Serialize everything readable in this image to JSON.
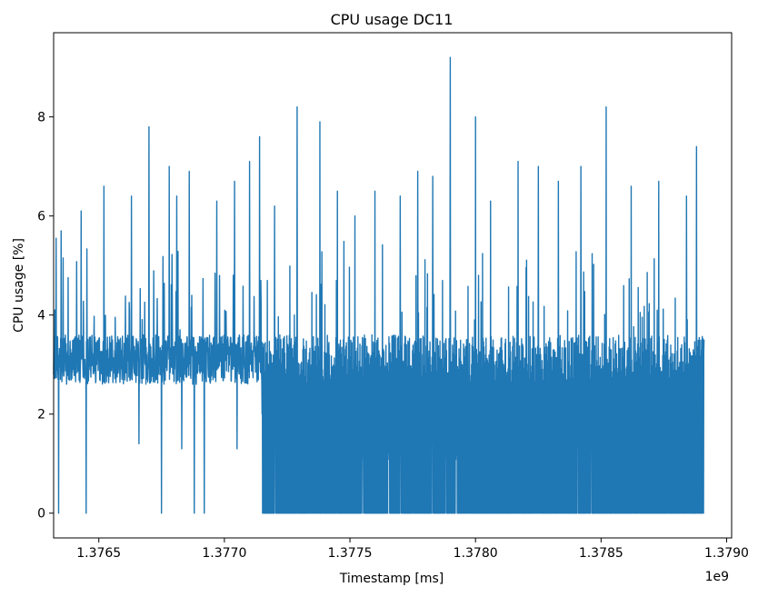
{
  "chart_data": {
    "type": "line",
    "title": "CPU usage DC11",
    "xlabel": "Timestamp [ms]",
    "ylabel": "CPU usage [%]",
    "x_offset_label": "1e9",
    "xlim": [
      1.37632,
      1.37902
    ],
    "ylim": [
      -0.5,
      9.7
    ],
    "x_ticks": [
      1.3765,
      1.377,
      1.3775,
      1.378,
      1.3785,
      1.379
    ],
    "x_tick_labels": [
      "1.3765",
      "1.3770",
      "1.3775",
      "1.3780",
      "1.3785",
      "1.3790"
    ],
    "y_ticks": [
      0,
      2,
      4,
      6,
      8
    ],
    "y_tick_labels": [
      "0",
      "2",
      "4",
      "6",
      "8"
    ],
    "grid": false,
    "legend": "none",
    "series": [
      {
        "color": "#1f77b4",
        "x_range": [
          1.37632,
          1.37891
        ],
        "baseline_range": [
          2.6,
          3.6
        ],
        "dense_zero_start": 1.37715,
        "points": [
          [
            1.37632,
            2.8
          ],
          [
            1.376325,
            4.1
          ],
          [
            1.37633,
            5.55
          ],
          [
            1.37634,
            0.0
          ],
          [
            1.37635,
            5.7
          ],
          [
            1.37638,
            2.7
          ],
          [
            1.37643,
            6.1
          ],
          [
            1.37645,
            0.0
          ],
          [
            1.37647,
            3.0
          ],
          [
            1.37652,
            6.6
          ],
          [
            1.37658,
            3.5
          ],
          [
            1.37663,
            6.4
          ],
          [
            1.37666,
            1.4
          ],
          [
            1.3767,
            7.8
          ],
          [
            1.37675,
            0.0
          ],
          [
            1.37678,
            7.0
          ],
          [
            1.37681,
            6.4
          ],
          [
            1.37683,
            1.3
          ],
          [
            1.37686,
            6.9
          ],
          [
            1.37688,
            0.0
          ],
          [
            1.37692,
            0.0
          ],
          [
            1.37697,
            6.3
          ],
          [
            1.377,
            3.6
          ],
          [
            1.37704,
            6.7
          ],
          [
            1.37705,
            1.3
          ],
          [
            1.3771,
            7.1
          ],
          [
            1.37714,
            7.6
          ],
          [
            1.37715,
            2.0
          ],
          [
            1.3772,
            6.2
          ],
          [
            1.37729,
            8.2
          ],
          [
            1.37738,
            7.9
          ],
          [
            1.37745,
            6.5
          ],
          [
            1.37752,
            6.0
          ],
          [
            1.3776,
            6.5
          ],
          [
            1.3777,
            6.4
          ],
          [
            1.37777,
            6.9
          ],
          [
            1.37783,
            6.8
          ],
          [
            1.3779,
            9.2
          ],
          [
            1.378,
            8.0
          ],
          [
            1.37806,
            6.3
          ],
          [
            1.37817,
            7.1
          ],
          [
            1.37825,
            7.0
          ],
          [
            1.37833,
            6.7
          ],
          [
            1.37842,
            7.0
          ],
          [
            1.37852,
            8.2
          ],
          [
            1.37862,
            6.6
          ],
          [
            1.37873,
            6.7
          ],
          [
            1.37884,
            6.4
          ],
          [
            1.37888,
            7.4
          ],
          [
            1.37891,
            3.5
          ]
        ]
      }
    ]
  }
}
